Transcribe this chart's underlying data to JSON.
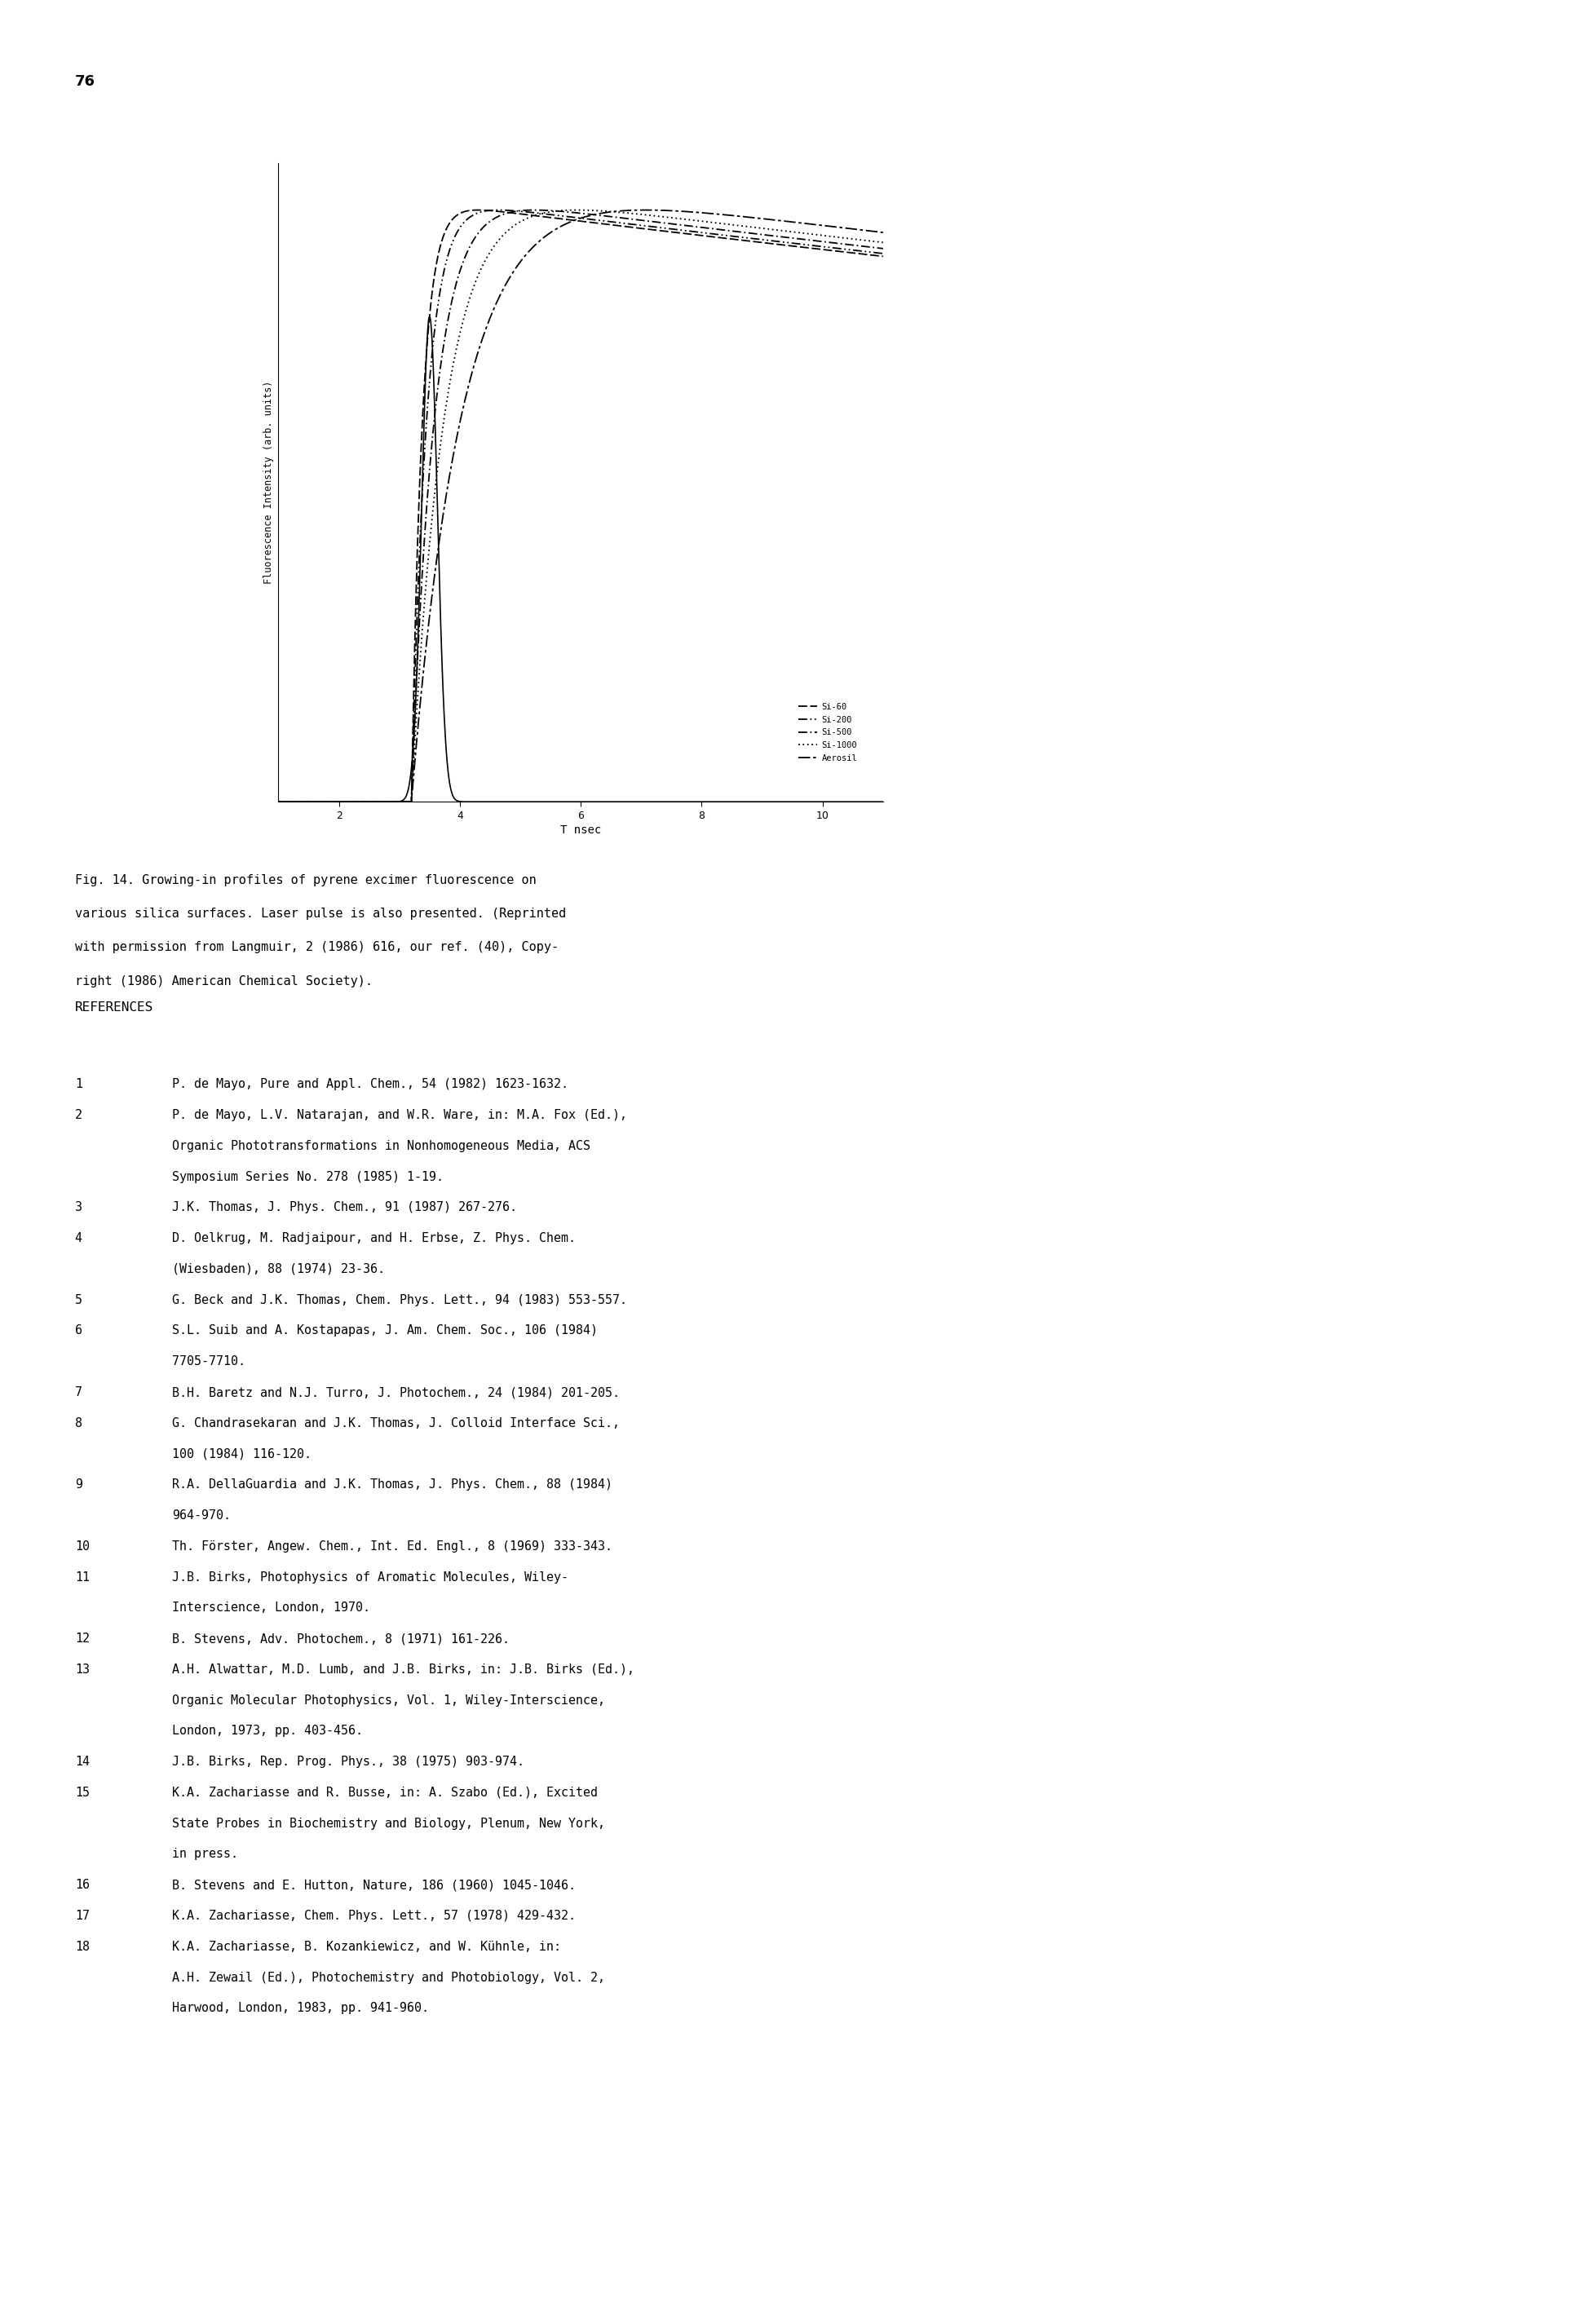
{
  "page_number": "76",
  "fig_caption_line1": "Fig. 14. Growing-in profiles of pyrene excimer fluorescence on",
  "fig_caption_line2": "various silica surfaces. Laser pulse is also presented. (Reprinted",
  "fig_caption_line3": "with permission from Langmuir, 2 (1986) 616, our ref. (40), Copy-",
  "fig_caption_line4": "right (1986) American Chemical Society).",
  "xlabel": "T nsec",
  "ylabel": "Fluorescence Intensity (arb. units)",
  "xmin": 1.0,
  "xmax": 11.0,
  "xticks": [
    2,
    4,
    6,
    8,
    10
  ],
  "legend_entries": [
    "Si-60",
    "Si-200",
    "Si-500",
    "Si-1000",
    "Aerosil"
  ],
  "references_title": "REFERENCES",
  "references": [
    [
      "1",
      "P. de Mayo, Pure and Appl. Chem., 54 (1982) 1623-1632."
    ],
    [
      "2",
      "P. de Mayo, L.V. Natarajan, and W.R. Ware, in: M.A. Fox (Ed.),",
      "Organic Phototransformations in Nonhomogeneous Media, ACS",
      "Symposium Series No. 278 (1985) 1-19."
    ],
    [
      "3",
      "J.K. Thomas, J. Phys. Chem., 91 (1987) 267-276."
    ],
    [
      "4",
      "D. Oelkrug, M. Radjaipour, and H. Erbse, Z. Phys. Chem.",
      "(Wiesbaden), 88 (1974) 23-36."
    ],
    [
      "5",
      "G. Beck and J.K. Thomas, Chem. Phys. Lett., 94 (1983) 553-557."
    ],
    [
      "6",
      "S.L. Suib and A. Kostapapas, J. Am. Chem. Soc., 106 (1984)",
      "7705-7710."
    ],
    [
      "7",
      "B.H. Baretz and N.J. Turro, J. Photochem., 24 (1984) 201-205."
    ],
    [
      "8",
      "G. Chandrasekaran and J.K. Thomas, J. Colloid Interface Sci.,",
      "100 (1984) 116-120."
    ],
    [
      "9",
      "R.A. DellaGuardia and J.K. Thomas, J. Phys. Chem., 88 (1984)",
      "964-970."
    ],
    [
      "10",
      "Th. Förster, Angew. Chem., Int. Ed. Engl., 8 (1969) 333-343."
    ],
    [
      "11",
      "J.B. Birks, Photophysics of Aromatic Molecules, Wiley-",
      "Interscience, London, 1970."
    ],
    [
      "12",
      "B. Stevens, Adv. Photochem., 8 (1971) 161-226."
    ],
    [
      "13",
      "A.H. Alwattar, M.D. Lumb, and J.B. Birks, in: J.B. Birks (Ed.),",
      "Organic Molecular Photophysics, Vol. 1, Wiley-Interscience,",
      "London, 1973, pp. 403-456."
    ],
    [
      "14",
      "J.B. Birks, Rep. Prog. Phys., 38 (1975) 903-974."
    ],
    [
      "15",
      "K.A. Zachariasse and R. Busse, in: A. Szabo (Ed.), Excited",
      "State Probes in Biochemistry and Biology, Plenum, New York,",
      "in press."
    ],
    [
      "16",
      "B. Stevens and E. Hutton, Nature, 186 (1960) 1045-1046."
    ],
    [
      "17",
      "K.A. Zachariasse, Chem. Phys. Lett., 57 (1978) 429-432."
    ],
    [
      "18",
      "K.A. Zachariasse, B. Kozankiewicz, and W. Kühnle, in:",
      "A.H. Zewail (Ed.), Photochemistry and Photobiology, Vol. 2,",
      "Harwood, London, 1983, pp. 941-960."
    ]
  ],
  "background_color": "#ffffff",
  "text_color": "#000000"
}
